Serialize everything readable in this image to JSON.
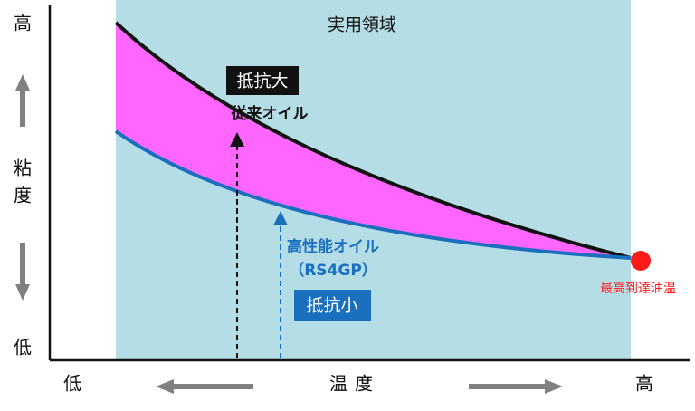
{
  "region_label": "実用領域",
  "y_axis": {
    "top": "高",
    "label_1": "粘",
    "label_2": "度",
    "bottom": "低"
  },
  "x_axis": {
    "left": "低",
    "label": "温度",
    "right": "高"
  },
  "conventional_oil": {
    "badge": "抵抗大",
    "name": "従来オイル"
  },
  "high_performance_oil": {
    "name": "高性能オイル",
    "model": "（RS4GP）",
    "badge": "抵抗小"
  },
  "max_temp_label": "最高到達油温"
}
